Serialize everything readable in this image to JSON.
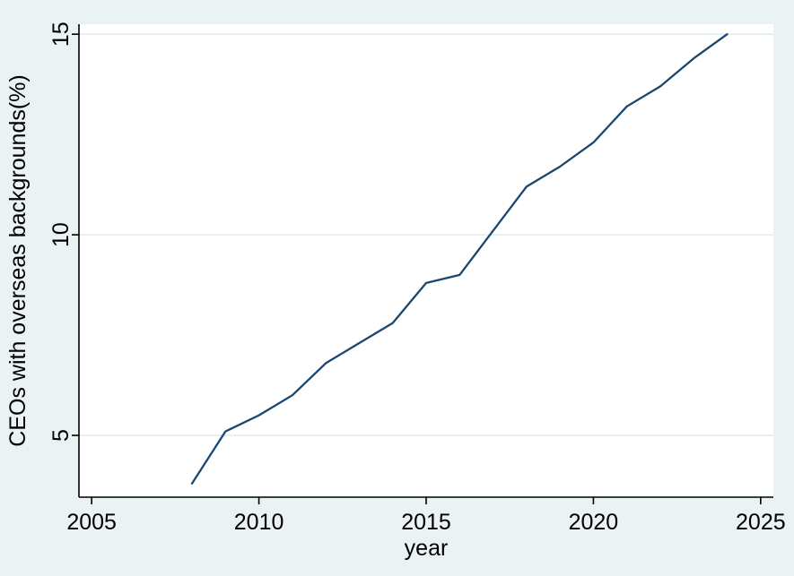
{
  "chart_data": {
    "type": "line",
    "title": "",
    "xlabel": "year",
    "ylabel": "CEOs with overseas backgrounds(%)",
    "x": [
      2008,
      2009,
      2010,
      2011,
      2012,
      2013,
      2014,
      2015,
      2016,
      2017,
      2018,
      2019,
      2020,
      2021,
      2022,
      2023,
      2024
    ],
    "series": [
      {
        "name": "CEOs with overseas backgrounds(%)",
        "values": [
          3.8,
          5.1,
          5.5,
          6.0,
          6.8,
          7.3,
          7.8,
          8.8,
          9.0,
          10.1,
          11.2,
          11.7,
          12.3,
          13.2,
          13.7,
          14.4,
          15.0
        ]
      }
    ],
    "xticks": [
      2005,
      2010,
      2015,
      2020,
      2025
    ],
    "yticks": [
      5,
      10,
      15
    ],
    "xlim": [
      2004.62,
      2025.38
    ],
    "ylim": [
      3.46,
      15.25
    ],
    "grid": "horizontal",
    "legend": "none",
    "colors": {
      "line": "#1a476f",
      "background": "#eaf2f3",
      "plot_background": "#ffffff",
      "gridline": "#e2ecee",
      "axis": "#000000",
      "text": "#000000"
    }
  }
}
